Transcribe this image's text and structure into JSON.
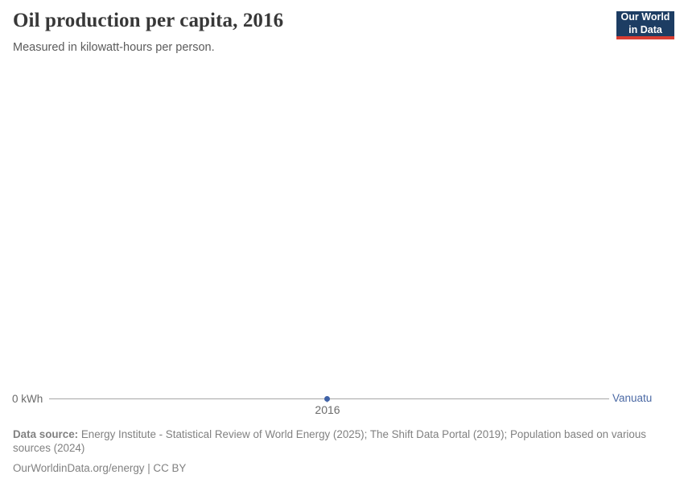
{
  "header": {
    "title": "Oil production per capita, 2016",
    "subtitle": "Measured in kilowatt-hours per person."
  },
  "logo": {
    "line1": "Our World",
    "line2": "in Data"
  },
  "chart": {
    "y_axis_tick": "0 kWh",
    "x_axis_tick": "2016",
    "entity_label": "Vanuatu"
  },
  "chart_data": {
    "type": "line",
    "title": "Oil production per capita, 2016",
    "subtitle": "Measured in kilowatt-hours per person.",
    "unit": "kilowatt-hours per person",
    "x": [
      2016
    ],
    "series": [
      {
        "name": "Vanuatu",
        "values": [
          0
        ]
      }
    ],
    "x_tick_labels": [
      "2016"
    ],
    "y_tick_labels": [
      "0 kWh"
    ],
    "xlabel": "",
    "ylabel": "kWh per person",
    "ylim": [
      0,
      0
    ],
    "grid": false,
    "legend_position": "right-end-of-line"
  },
  "footer": {
    "source_label": "Data source:",
    "source_text": "Energy Institute - Statistical Review of World Energy (2025); The Shift Data Portal (2019); Population based on various sources (2024)",
    "citation": "OurWorldinData.org/energy | CC BY"
  },
  "colors": {
    "series_blue": "#3f62a7",
    "entity_label_blue": "#4c6aa5",
    "axis_gray": "#a6a6a6",
    "title_gray": "#383838",
    "subtitle_gray": "#5b5b5b",
    "footer_gray": "#818181",
    "logo_navy": "#1d3d63",
    "logo_red": "#d93d32"
  }
}
